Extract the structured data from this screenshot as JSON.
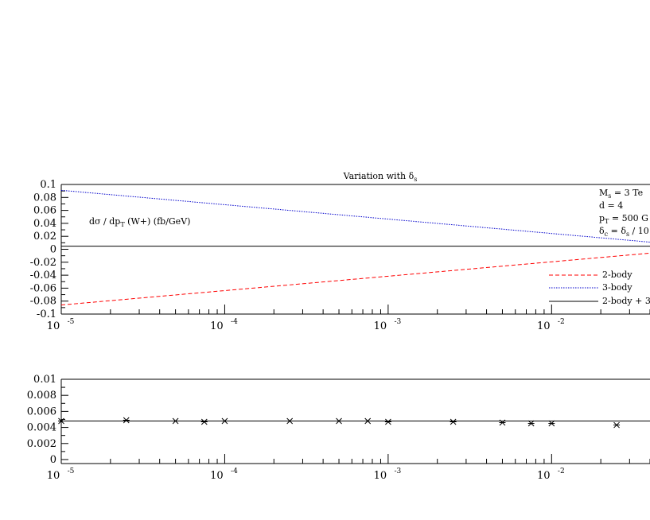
{
  "chart_data": [
    {
      "type": "line",
      "title": "Variation with δ",
      "title_sub": "s",
      "y_annotation": "dσ / dp_T (W+) (fb/GeV)",
      "x_scale": "log",
      "xlim": [
        1e-05,
        0.04
      ],
      "ylim": [
        -0.1,
        0.1
      ],
      "x_ticks": [
        {
          "base": "10",
          "exp": "-5"
        },
        {
          "base": "10",
          "exp": "-4"
        },
        {
          "base": "10",
          "exp": "-3"
        },
        {
          "base": "10",
          "exp": "-2"
        }
      ],
      "y_ticks": [
        "0.1",
        "0.08",
        "0.06",
        "0.04",
        "0.02",
        "0",
        "-0.02",
        "-0.04",
        "-0.06",
        "-0.08",
        "-0.1"
      ],
      "params": [
        "M_s = 3 Te",
        "d = 4",
        "p_T = 500 G",
        "δ_c = δ_s / 10"
      ],
      "legend_placement": "bottom-right",
      "series": [
        {
          "name": "2-body",
          "color": "#ff0000",
          "style": "dashed",
          "x": [
            1e-05,
            0.04
          ],
          "y": [
            -0.086,
            -0.006
          ]
        },
        {
          "name": "3-body",
          "color": "#0000cc",
          "style": "dotted",
          "x": [
            1e-05,
            0.04
          ],
          "y": [
            0.091,
            0.011
          ]
        },
        {
          "name": "2-body + 3",
          "color": "#000000",
          "style": "solid",
          "x": [
            1e-05,
            0.04
          ],
          "y": [
            0.0048,
            0.0048
          ]
        }
      ]
    },
    {
      "type": "scatter",
      "x_scale": "log",
      "xlim": [
        1e-05,
        0.04
      ],
      "ylim": [
        -0.0005,
        0.01
      ],
      "x_ticks": [
        {
          "base": "10",
          "exp": "-5"
        },
        {
          "base": "10",
          "exp": "-4"
        },
        {
          "base": "10",
          "exp": "-3"
        },
        {
          "base": "10",
          "exp": "-2"
        }
      ],
      "y_ticks": [
        "0.01",
        "0.008",
        "0.006",
        "0.004",
        "0.002",
        "0"
      ],
      "reference_line": 0.0048,
      "points": [
        {
          "x": 1e-05,
          "y": 0.0048
        },
        {
          "x": 2.5e-05,
          "y": 0.0049
        },
        {
          "x": 5e-05,
          "y": 0.0048
        },
        {
          "x": 7.5e-05,
          "y": 0.0047
        },
        {
          "x": 0.0001,
          "y": 0.0048
        },
        {
          "x": 0.00025,
          "y": 0.0048
        },
        {
          "x": 0.0005,
          "y": 0.0048
        },
        {
          "x": 0.00075,
          "y": 0.0048
        },
        {
          "x": 0.001,
          "y": 0.0047
        },
        {
          "x": 0.0025,
          "y": 0.0047
        },
        {
          "x": 0.005,
          "y": 0.0046
        },
        {
          "x": 0.0075,
          "y": 0.0045
        },
        {
          "x": 0.01,
          "y": 0.0045
        },
        {
          "x": 0.025,
          "y": 0.0043
        }
      ]
    }
  ]
}
